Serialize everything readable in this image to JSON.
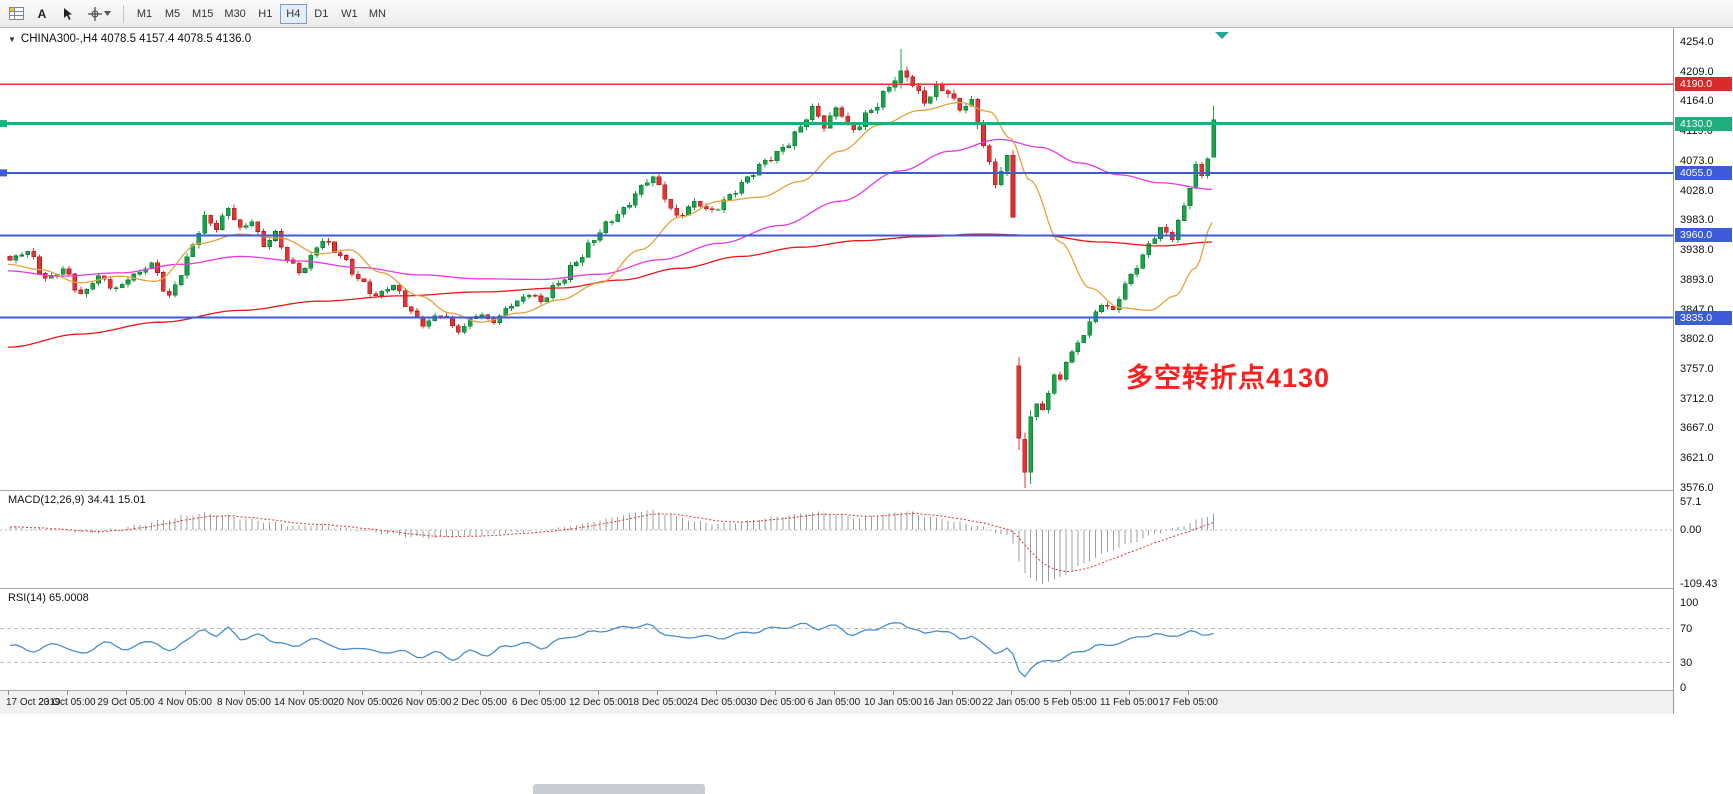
{
  "toolbar": {
    "text_tool_label": "A",
    "timeframes": [
      "M1",
      "M5",
      "M15",
      "M30",
      "H1",
      "H4",
      "D1",
      "W1",
      "MN"
    ],
    "active_timeframe": "H4",
    "icons": [
      "chart-grid-icon",
      "text-tool-icon",
      "cursor-icon",
      "crosshair-dropdown-icon"
    ]
  },
  "symbol_header": {
    "text": "CHINA300-,H4 4078.5 4157.4 4078.5 4136.0"
  },
  "annotation": {
    "text": "多空转折点4130",
    "color": "#ff1e1e"
  },
  "price_axis": {
    "ticks": [
      "4254.0",
      "4209.0",
      "4164.0",
      "4119.0",
      "4073.0",
      "4028.0",
      "3983.0",
      "3938.0",
      "3893.0",
      "3847.0",
      "3802.0",
      "3757.0",
      "3712.0",
      "3667.0",
      "3621.0",
      "3576.0"
    ]
  },
  "levels": [
    {
      "price": 4190.0,
      "label": "4190.0",
      "color": "#f03030",
      "badge": "#d92b2b",
      "width": 1.5,
      "marker": false
    },
    {
      "price": 4130.0,
      "label": "4130.0",
      "color": "#1fae7e",
      "badge": "#1fae7e",
      "width": 3,
      "marker": true
    },
    {
      "price": 4055.0,
      "label": "4055.0",
      "color": "#3c5bd7",
      "badge": "#3c5bd7",
      "width": 2,
      "marker": true
    },
    {
      "price": 3960.0,
      "label": "3960.0",
      "color": "#3c5bd7",
      "badge": "#3c5bd7",
      "width": 2,
      "marker": false
    },
    {
      "price": 3835.0,
      "label": "3835.0",
      "color": "#3c5bd7",
      "badge": "#3c5bd7",
      "width": 2,
      "marker": false
    }
  ],
  "macd": {
    "label": "MACD(12,26,9) 34.41 15.01",
    "axis": [
      "57.1",
      "0.00",
      "-109.43"
    ],
    "range": [
      -109.43,
      57.1
    ]
  },
  "rsi": {
    "label": "RSI(14) 65.0008",
    "axis": [
      "100",
      "70",
      "30",
      "0"
    ],
    "level_lines": [
      70,
      30
    ]
  },
  "time_axis": {
    "labels": [
      "17 Oct 2019",
      "23 Oct 05:00",
      "29 Oct 05:00",
      "4 Nov 05:00",
      "8 Nov 05:00",
      "14 Nov 05:00",
      "20 Nov 05:00",
      "26 Nov 05:00",
      "2 Dec 05:00",
      "6 Dec 05:00",
      "12 Dec 05:00",
      "18 Dec 05:00",
      "24 Dec 05:00",
      "30 Dec 05:00",
      "6 Jan 05:00",
      "10 Jan 05:00",
      "16 Jan 05:00",
      "22 Jan 05:00",
      "5 Feb 05:00",
      "11 Feb 05:00",
      "17 Feb 05:00"
    ]
  },
  "colors": {
    "bull": "#18a349",
    "bull_stroke": "#0e7a31",
    "bear": "#e23434",
    "bear_stroke": "#b31d1d",
    "ma_fast": "#e6a23c",
    "ma_mid": "#e53ae5",
    "ma_slow": "#e81717",
    "macd_hist": "#9aa0a6",
    "macd_signal": "#e23434",
    "rsi_line": "#4a8ed0",
    "shift_marker": "#26a69a"
  },
  "chart_data": {
    "type": "candlestick",
    "symbol": "CHINA300-",
    "timeframe": "H4",
    "last_bar": {
      "open": 4078.5,
      "high": 4157.4,
      "low": 4078.5,
      "close": 4136.0
    },
    "count": 205,
    "price_range": [
      3576.0,
      4254.0
    ],
    "close_anchors": [
      [
        0,
        3922,
        9
      ],
      [
        3,
        3934,
        9
      ],
      [
        6,
        3896,
        9
      ],
      [
        9,
        3908,
        9
      ],
      [
        12,
        3868,
        10
      ],
      [
        15,
        3899,
        9
      ],
      [
        18,
        3878,
        9
      ],
      [
        21,
        3898,
        9
      ],
      [
        24,
        3918,
        9
      ],
      [
        27,
        3866,
        10
      ],
      [
        29,
        3900,
        10
      ],
      [
        31,
        3946,
        11
      ],
      [
        33,
        3990,
        11
      ],
      [
        35,
        3972,
        10
      ],
      [
        37,
        4000,
        10
      ],
      [
        39,
        3968,
        10
      ],
      [
        41,
        3984,
        9
      ],
      [
        43,
        3946,
        9
      ],
      [
        45,
        3962,
        9
      ],
      [
        47,
        3922,
        9
      ],
      [
        49,
        3906,
        9
      ],
      [
        53,
        3952,
        10
      ],
      [
        56,
        3928,
        9
      ],
      [
        59,
        3896,
        9
      ],
      [
        62,
        3868,
        9
      ],
      [
        65,
        3882,
        9
      ],
      [
        68,
        3846,
        9
      ],
      [
        70,
        3826,
        9
      ],
      [
        73,
        3838,
        8
      ],
      [
        76,
        3816,
        8
      ],
      [
        79,
        3840,
        8
      ],
      [
        82,
        3828,
        8
      ],
      [
        85,
        3856,
        8
      ],
      [
        88,
        3872,
        8
      ],
      [
        90,
        3858,
        8
      ],
      [
        93,
        3888,
        9
      ],
      [
        96,
        3922,
        10
      ],
      [
        99,
        3952,
        10
      ],
      [
        101,
        3976,
        10
      ],
      [
        104,
        4002,
        10
      ],
      [
        107,
        4032,
        10
      ],
      [
        109,
        4048,
        10
      ],
      [
        111,
        4018,
        10
      ],
      [
        113,
        3990,
        10
      ],
      [
        116,
        4008,
        9
      ],
      [
        119,
        3996,
        9
      ],
      [
        122,
        4022,
        9
      ],
      [
        125,
        4046,
        9
      ],
      [
        128,
        4072,
        10
      ],
      [
        131,
        4094,
        10
      ],
      [
        134,
        4122,
        11
      ],
      [
        136,
        4152,
        11
      ],
      [
        138,
        4128,
        11
      ],
      [
        140,
        4155,
        11
      ],
      [
        143,
        4118,
        11
      ],
      [
        146,
        4150,
        11
      ],
      [
        149,
        4188,
        12
      ],
      [
        151,
        4210,
        14
      ],
      [
        153,
        4188,
        11
      ],
      [
        155,
        4162,
        11
      ],
      [
        157,
        4188,
        11
      ],
      [
        159,
        4178,
        11
      ],
      [
        161,
        4150,
        11
      ],
      [
        163,
        4162,
        11
      ],
      [
        165,
        4100,
        13
      ],
      [
        167,
        4042,
        13
      ],
      [
        169,
        4076,
        13
      ],
      [
        170,
        3988,
        14
      ],
      [
        171,
        3652,
        1
      ],
      [
        172,
        3600,
        1
      ],
      [
        173,
        3684,
        1
      ],
      [
        174,
        3706,
        11
      ],
      [
        175,
        3694,
        10
      ],
      [
        176,
        3724,
        10
      ],
      [
        177,
        3748,
        10
      ],
      [
        178,
        3738,
        9
      ],
      [
        179,
        3768,
        9
      ],
      [
        181,
        3794,
        9
      ],
      [
        183,
        3830,
        9
      ],
      [
        185,
        3858,
        9
      ],
      [
        187,
        3844,
        9
      ],
      [
        189,
        3884,
        9
      ],
      [
        191,
        3914,
        9
      ],
      [
        193,
        3948,
        9
      ],
      [
        195,
        3970,
        9
      ],
      [
        197,
        3954,
        9
      ],
      [
        199,
        4004,
        10
      ],
      [
        201,
        4068,
        10
      ],
      [
        202,
        4052,
        9
      ],
      [
        203,
        4080,
        9
      ],
      [
        204,
        4136,
        1
      ]
    ],
    "overrides": {
      "151": [
        4192,
        4243,
        4183,
        4210
      ],
      "171": [
        3762,
        3775,
        3634,
        3652
      ],
      "172": [
        3650,
        3660,
        3576,
        3600
      ],
      "173": [
        3600,
        3694,
        3582,
        3684
      ],
      "204": [
        4078.5,
        4157.4,
        4078.5,
        4136.0
      ]
    },
    "ma_slow_path": [
      [
        8,
        3790
      ],
      [
        80,
        3810
      ],
      [
        160,
        3828
      ],
      [
        240,
        3846
      ],
      [
        320,
        3860
      ],
      [
        400,
        3868
      ],
      [
        480,
        3874
      ],
      [
        560,
        3880
      ],
      [
        620,
        3892
      ],
      [
        680,
        3910
      ],
      [
        740,
        3928
      ],
      [
        800,
        3942
      ],
      [
        860,
        3952
      ],
      [
        920,
        3958
      ],
      [
        980,
        3962
      ],
      [
        1040,
        3960
      ],
      [
        1100,
        3950
      ],
      [
        1160,
        3944
      ],
      [
        1213,
        3950
      ]
    ],
    "ma_mid_path": [
      [
        8,
        3906
      ],
      [
        60,
        3898
      ],
      [
        120,
        3903
      ],
      [
        180,
        3916
      ],
      [
        240,
        3928
      ],
      [
        300,
        3921
      ],
      [
        360,
        3911
      ],
      [
        420,
        3900
      ],
      [
        480,
        3894
      ],
      [
        540,
        3893
      ],
      [
        600,
        3901
      ],
      [
        660,
        3923
      ],
      [
        720,
        3948
      ],
      [
        780,
        3975
      ],
      [
        840,
        4012
      ],
      [
        900,
        4058
      ],
      [
        950,
        4088
      ],
      [
        1000,
        4106
      ],
      [
        1040,
        4094
      ],
      [
        1080,
        4070
      ],
      [
        1120,
        4052
      ],
      [
        1160,
        4040
      ],
      [
        1213,
        4030
      ]
    ],
    "ma_fast_path": [
      [
        8,
        3916
      ],
      [
        40,
        3908
      ],
      [
        80,
        3888
      ],
      [
        120,
        3898
      ],
      [
        155,
        3890
      ],
      [
        200,
        3948
      ],
      [
        240,
        3962
      ],
      [
        280,
        3956
      ],
      [
        320,
        3932
      ],
      [
        350,
        3938
      ],
      [
        380,
        3904
      ],
      [
        420,
        3868
      ],
      [
        450,
        3842
      ],
      [
        480,
        3828
      ],
      [
        520,
        3842
      ],
      [
        560,
        3862
      ],
      [
        600,
        3888
      ],
      [
        640,
        3938
      ],
      [
        680,
        3988
      ],
      [
        720,
        4012
      ],
      [
        760,
        4018
      ],
      [
        800,
        4042
      ],
      [
        840,
        4088
      ],
      [
        880,
        4128
      ],
      [
        920,
        4150
      ],
      [
        960,
        4162
      ],
      [
        990,
        4148
      ],
      [
        1010,
        4108
      ],
      [
        1030,
        4044
      ],
      [
        1060,
        3950
      ],
      [
        1090,
        3880
      ],
      [
        1120,
        3850
      ],
      [
        1150,
        3846
      ],
      [
        1175,
        3868
      ],
      [
        1195,
        3910
      ],
      [
        1213,
        3980
      ]
    ],
    "macd_anchors": [
      [
        0,
        6
      ],
      [
        5,
        2
      ],
      [
        10,
        -3
      ],
      [
        14,
        -6
      ],
      [
        18,
        2
      ],
      [
        22,
        10
      ],
      [
        26,
        20
      ],
      [
        30,
        30
      ],
      [
        33,
        34
      ],
      [
        36,
        30
      ],
      [
        40,
        22
      ],
      [
        44,
        16
      ],
      [
        48,
        8
      ],
      [
        52,
        10
      ],
      [
        56,
        4
      ],
      [
        60,
        -2
      ],
      [
        64,
        -8
      ],
      [
        68,
        -14
      ],
      [
        72,
        -16
      ],
      [
        76,
        -13
      ],
      [
        80,
        -11
      ],
      [
        84,
        -6
      ],
      [
        88,
        -3
      ],
      [
        92,
        2
      ],
      [
        96,
        10
      ],
      [
        100,
        20
      ],
      [
        104,
        30
      ],
      [
        108,
        40
      ],
      [
        111,
        34
      ],
      [
        114,
        24
      ],
      [
        117,
        16
      ],
      [
        120,
        12
      ],
      [
        124,
        16
      ],
      [
        128,
        24
      ],
      [
        132,
        30
      ],
      [
        136,
        36
      ],
      [
        140,
        32
      ],
      [
        144,
        24
      ],
      [
        148,
        32
      ],
      [
        152,
        38
      ],
      [
        155,
        28
      ],
      [
        158,
        22
      ],
      [
        161,
        15
      ],
      [
        164,
        8
      ],
      [
        167,
        -4
      ],
      [
        169,
        -12
      ],
      [
        170,
        -28
      ],
      [
        171,
        -62
      ],
      [
        172,
        -88
      ],
      [
        173,
        -100
      ],
      [
        175,
        -108
      ],
      [
        177,
        -102
      ],
      [
        179,
        -90
      ],
      [
        181,
        -76
      ],
      [
        183,
        -62
      ],
      [
        185,
        -50
      ],
      [
        187,
        -40
      ],
      [
        189,
        -31
      ],
      [
        191,
        -22
      ],
      [
        193,
        -13
      ],
      [
        195,
        -5
      ],
      [
        197,
        2
      ],
      [
        199,
        10
      ],
      [
        201,
        19
      ],
      [
        203,
        29
      ],
      [
        204,
        34.41
      ]
    ],
    "rsi_anchors": [
      [
        0,
        50
      ],
      [
        4,
        44
      ],
      [
        8,
        52
      ],
      [
        12,
        40
      ],
      [
        16,
        53
      ],
      [
        20,
        46
      ],
      [
        24,
        56
      ],
      [
        27,
        42
      ],
      [
        30,
        58
      ],
      [
        33,
        68
      ],
      [
        35,
        62
      ],
      [
        37,
        70
      ],
      [
        39,
        58
      ],
      [
        42,
        62
      ],
      [
        45,
        55
      ],
      [
        48,
        48
      ],
      [
        51,
        58
      ],
      [
        54,
        52
      ],
      [
        57,
        44
      ],
      [
        60,
        48
      ],
      [
        63,
        40
      ],
      [
        66,
        45
      ],
      [
        69,
        36
      ],
      [
        72,
        42
      ],
      [
        75,
        34
      ],
      [
        78,
        43
      ],
      [
        81,
        39
      ],
      [
        84,
        49
      ],
      [
        87,
        53
      ],
      [
        90,
        47
      ],
      [
        93,
        56
      ],
      [
        96,
        62
      ],
      [
        99,
        66
      ],
      [
        102,
        69
      ],
      [
        105,
        72
      ],
      [
        108,
        74
      ],
      [
        111,
        64
      ],
      [
        114,
        58
      ],
      [
        117,
        62
      ],
      [
        120,
        58
      ],
      [
        123,
        63
      ],
      [
        126,
        66
      ],
      [
        129,
        70
      ],
      [
        132,
        72
      ],
      [
        135,
        75
      ],
      [
        137,
        70
      ],
      [
        140,
        73
      ],
      [
        143,
        62
      ],
      [
        146,
        69
      ],
      [
        149,
        74
      ],
      [
        151,
        77
      ],
      [
        153,
        70
      ],
      [
        155,
        63
      ],
      [
        157,
        69
      ],
      [
        159,
        65
      ],
      [
        161,
        58
      ],
      [
        163,
        62
      ],
      [
        165,
        50
      ],
      [
        167,
        42
      ],
      [
        169,
        46
      ],
      [
        170,
        38
      ],
      [
        171,
        20
      ],
      [
        172,
        15
      ],
      [
        173,
        24
      ],
      [
        174,
        28
      ],
      [
        176,
        32
      ],
      [
        178,
        34
      ],
      [
        180,
        40
      ],
      [
        182,
        44
      ],
      [
        184,
        50
      ],
      [
        186,
        49
      ],
      [
        188,
        54
      ],
      [
        190,
        57
      ],
      [
        192,
        61
      ],
      [
        194,
        64
      ],
      [
        196,
        60
      ],
      [
        198,
        63
      ],
      [
        200,
        66
      ],
      [
        202,
        63
      ],
      [
        204,
        65
      ]
    ]
  }
}
